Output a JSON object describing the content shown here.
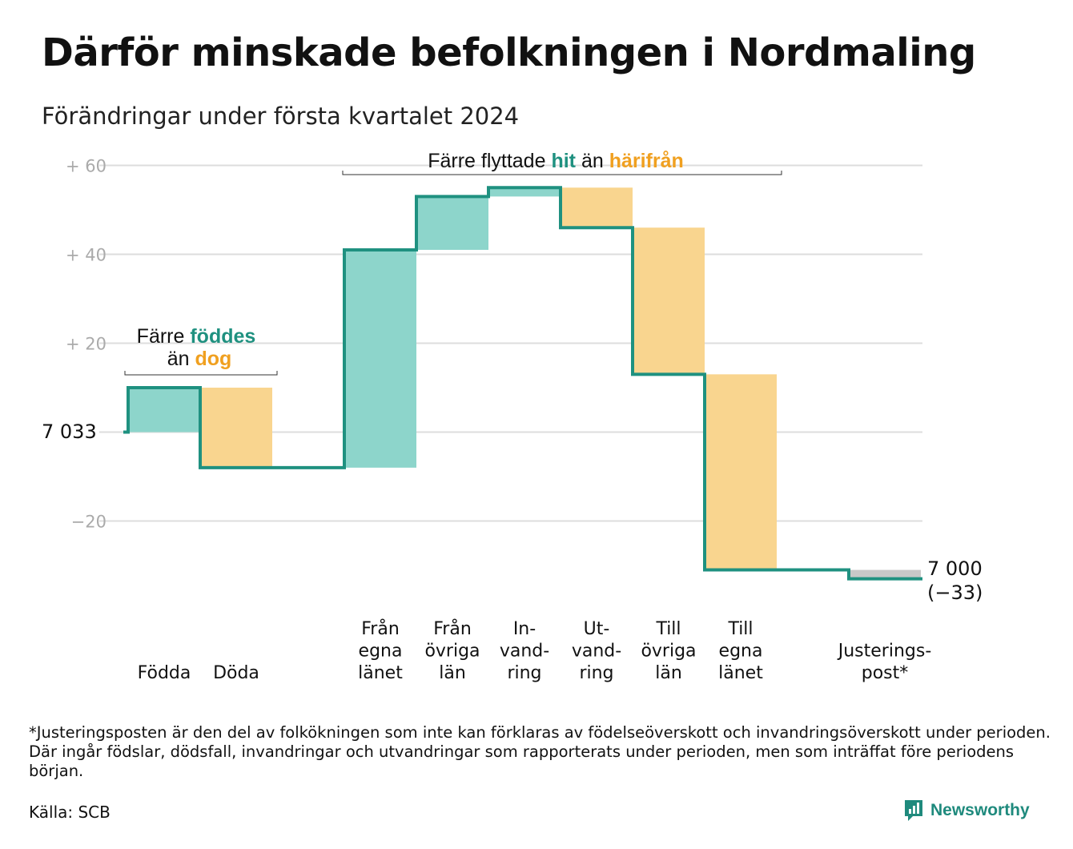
{
  "title": "Därför minskade befolkningen i Nordmaling",
  "subtitle": "Förändringar under första kvartalet 2024",
  "chart_data": {
    "type": "waterfall",
    "start_label": "7 033",
    "end_label": [
      "7 000",
      "(−33)"
    ],
    "start_value": 0,
    "end_value": -33,
    "ylim": [
      -33,
      62
    ],
    "yticks": [
      {
        "value": 60,
        "label": "+ 60"
      },
      {
        "value": 40,
        "label": "+ 40"
      },
      {
        "value": 20,
        "label": "+ 20"
      },
      {
        "value": 0,
        "label": ""
      },
      {
        "value": -20,
        "label": "−20"
      }
    ],
    "steps": [
      {
        "category": [
          "Födda"
        ],
        "value": 10,
        "kind": "in"
      },
      {
        "category": [
          "Döda"
        ],
        "value": -18,
        "kind": "out"
      },
      {
        "category": [
          ""
        ],
        "value": 0,
        "kind": "gap"
      },
      {
        "category": [
          "Från",
          "egna",
          "länet"
        ],
        "value": 49,
        "kind": "in"
      },
      {
        "category": [
          "Från",
          "övriga",
          "län"
        ],
        "value": 12,
        "kind": "in"
      },
      {
        "category": [
          "In-",
          "vand-",
          "ring"
        ],
        "value": 2,
        "kind": "in"
      },
      {
        "category": [
          "Ut-",
          "vand-",
          "ring"
        ],
        "value": -9,
        "kind": "out"
      },
      {
        "category": [
          "Till",
          "övriga",
          "län"
        ],
        "value": -33,
        "kind": "out"
      },
      {
        "category": [
          "Till",
          "egna",
          "länet"
        ],
        "value": -44,
        "kind": "out"
      },
      {
        "category": [
          ""
        ],
        "value": 0,
        "kind": "gap"
      },
      {
        "category": [
          "Justerings-",
          "post*"
        ],
        "value": -2,
        "kind": "adjust"
      }
    ],
    "colors": {
      "in": "#8dd5cb",
      "out": "#f9d58f",
      "adjust": "#c8c8c8",
      "line": "#1f9180",
      "grid": "#dddddd",
      "tick": "#aaaaaa",
      "hit": "#1f9180",
      "harifran": "#f0a020"
    },
    "annotations": {
      "births": {
        "line1": "Färre",
        "line1_em": "föddes",
        "line2": "än",
        "line2_em": "dog"
      },
      "moves": {
        "pre": "Färre flyttade",
        "em1": "hit",
        "mid": "än",
        "em2": "härifrån"
      }
    }
  },
  "footnote": "*Justeringsposten är den del av folkökningen som inte kan förklaras av födelseöverskott och invandringsöverskott under perioden. Där ingår födslar, dödsfall, invandringar och utvandringar som rapporterats under perioden, men som inträffat före periodens början.",
  "source": "Källa: SCB",
  "brand": {
    "name": "Newsworthy",
    "icon": "newsworthy-logo-icon"
  }
}
